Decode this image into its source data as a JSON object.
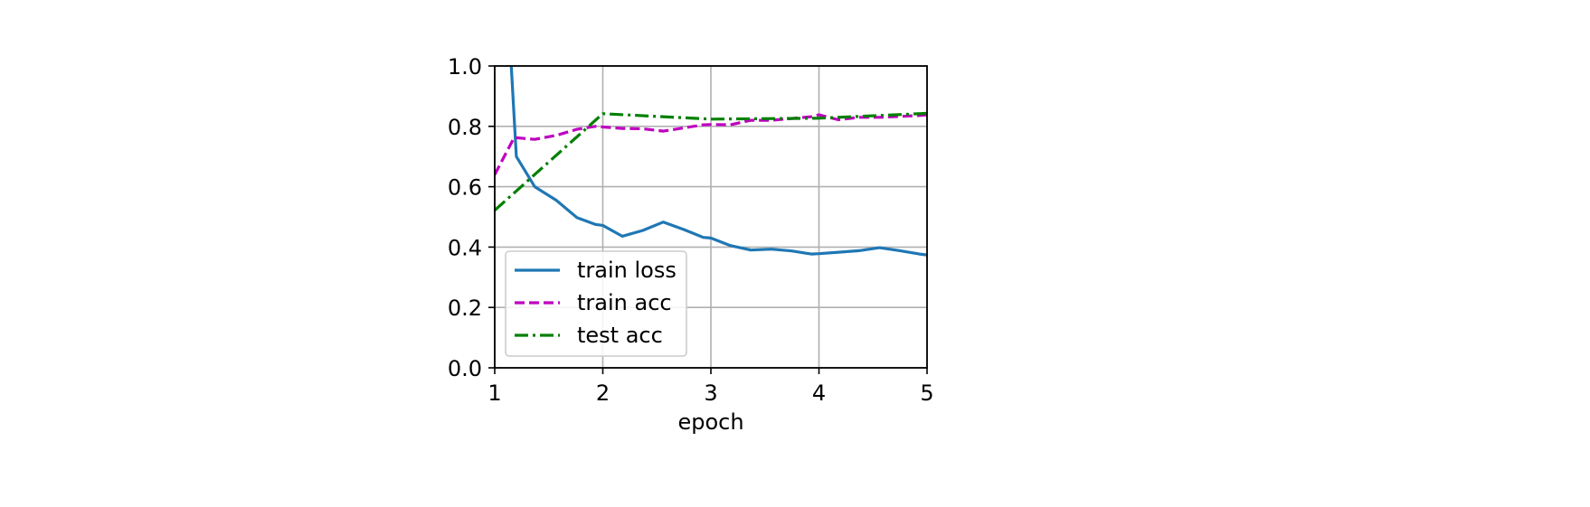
{
  "chart_data": {
    "type": "line",
    "title": "",
    "xlabel": "epoch",
    "ylabel": "",
    "xlim": [
      1,
      5
    ],
    "ylim": [
      0.0,
      1.0
    ],
    "xticks": [
      "1",
      "2",
      "3",
      "4",
      "5"
    ],
    "yticks": [
      "0.0",
      "0.2",
      "0.4",
      "0.6",
      "0.8",
      "1.0"
    ],
    "grid": true,
    "legend_position": "lower-left",
    "series": [
      {
        "name": "train loss",
        "color": "#1f77b4",
        "dash": "solid",
        "x": [
          1.15,
          1.2,
          1.37,
          1.57,
          1.76,
          1.93,
          2.0,
          2.18,
          2.37,
          2.56,
          2.75,
          2.93,
          3.0,
          3.18,
          3.37,
          3.56,
          3.75,
          3.93,
          4.0,
          4.18,
          4.37,
          4.56,
          4.75,
          4.93,
          5.0
        ],
        "y": [
          1.02,
          0.7,
          0.6,
          0.555,
          0.498,
          0.475,
          0.472,
          0.436,
          0.455,
          0.483,
          0.458,
          0.432,
          0.43,
          0.405,
          0.39,
          0.393,
          0.387,
          0.377,
          0.378,
          0.383,
          0.388,
          0.398,
          0.388,
          0.377,
          0.374
        ]
      },
      {
        "name": "train acc",
        "color": "#bf00bf",
        "dash": "dashed",
        "x": [
          1.0,
          1.18,
          1.37,
          1.57,
          1.76,
          1.93,
          2.0,
          2.18,
          2.37,
          2.56,
          2.75,
          2.93,
          3.0,
          3.18,
          3.37,
          3.56,
          3.75,
          3.93,
          4.0,
          4.18,
          4.37,
          4.56,
          4.75,
          4.93,
          5.0
        ],
        "y": [
          0.64,
          0.763,
          0.757,
          0.77,
          0.79,
          0.8,
          0.798,
          0.793,
          0.792,
          0.784,
          0.795,
          0.805,
          0.806,
          0.805,
          0.82,
          0.82,
          0.826,
          0.832,
          0.838,
          0.822,
          0.83,
          0.83,
          0.833,
          0.836,
          0.838
        ]
      },
      {
        "name": "test acc",
        "color": "#008000",
        "dash": "dashdot",
        "x": [
          1.0,
          2.0,
          3.0,
          4.0,
          5.0
        ],
        "y": [
          0.522,
          0.842,
          0.824,
          0.827,
          0.843
        ]
      }
    ]
  }
}
